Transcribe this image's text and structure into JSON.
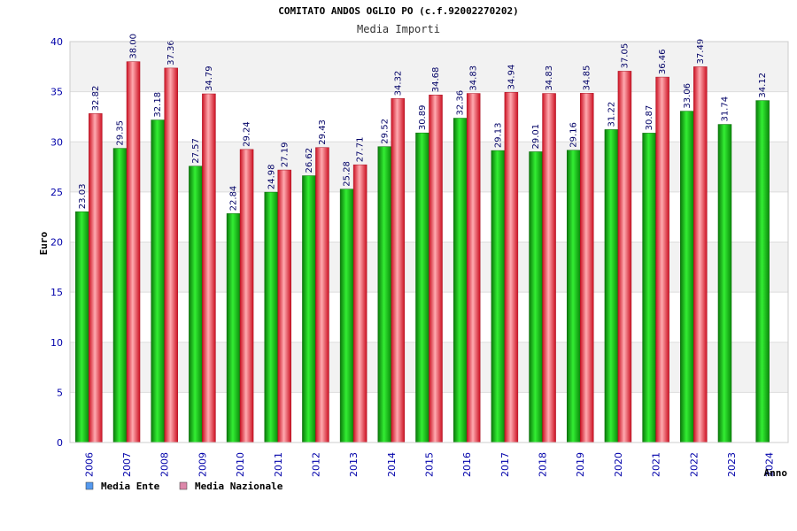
{
  "chart_data": {
    "type": "bar",
    "title": "COMITATO ANDOS OGLIO PO (c.f.92002270202)",
    "subtitle": "Media Importi",
    "xlabel": "Anno",
    "ylabel": "Euro",
    "ylim": [
      0,
      40
    ],
    "yticks": [
      "0",
      "5",
      "10",
      "15",
      "20",
      "25",
      "30",
      "35",
      "40"
    ],
    "grid": true,
    "legend_position": "bottom-left",
    "categories": [
      "2006",
      "2007",
      "2008",
      "2009",
      "2010",
      "2011",
      "2012",
      "2013",
      "2014",
      "2015",
      "2016",
      "2017",
      "2018",
      "2019",
      "2020",
      "2021",
      "2022",
      "2023",
      "2024"
    ],
    "series": [
      {
        "name": "Media Ente",
        "color": "#22bb22",
        "legend_color": "#5599ee",
        "values": [
          23.03,
          29.35,
          32.18,
          27.57,
          22.84,
          24.98,
          26.62,
          25.28,
          29.52,
          30.89,
          32.36,
          29.13,
          29.01,
          29.16,
          31.22,
          30.87,
          33.06,
          31.74,
          34.12
        ],
        "labels": [
          "23.03",
          "29.35",
          "32.18",
          "27.57",
          "22.84",
          "24.98",
          "26.62",
          "25.28",
          "29.52",
          "30.89",
          "32.36",
          "29.13",
          "29.01",
          "29.16",
          "31.22",
          "30.87",
          "33.06",
          "31.74",
          "34.12"
        ]
      },
      {
        "name": "Media Nazionale",
        "color": "#ee3344",
        "legend_color": "#dd88aa",
        "values": [
          32.82,
          38.0,
          37.36,
          34.79,
          29.24,
          27.19,
          29.43,
          27.71,
          34.32,
          34.68,
          34.83,
          34.94,
          34.83,
          34.85,
          37.05,
          36.46,
          37.49,
          null,
          null
        ],
        "labels": [
          "32.82",
          "38.00",
          "37.36",
          "34.79",
          "29.24",
          "27.19",
          "29.43",
          "27.71",
          "34.32",
          "34.68",
          "34.83",
          "34.94",
          "34.83",
          "34.85",
          "37.05",
          "36.46",
          "37.49",
          null,
          null
        ]
      }
    ]
  }
}
